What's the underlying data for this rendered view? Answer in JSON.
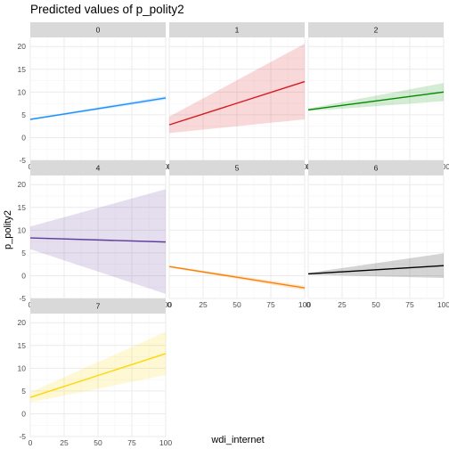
{
  "chart_data": {
    "type": "line",
    "title": "Predicted values of p_polity2",
    "xlabel": "wdi_internet",
    "ylabel": "p_polity2",
    "xlim": [
      0,
      100
    ],
    "ylim": [
      -5,
      22
    ],
    "x_ticks": [
      0,
      25,
      50,
      75,
      100
    ],
    "y_ticks": [
      -5,
      0,
      5,
      10,
      15,
      20
    ],
    "grid": true,
    "facets": [
      {
        "label": "0",
        "x": [
          0,
          100
        ],
        "y": [
          4.0,
          8.7
        ],
        "lower": [
          3.8,
          8.3
        ],
        "upper": [
          4.2,
          9.1
        ],
        "color": "#1E90FF"
      },
      {
        "label": "1",
        "x": [
          0,
          100
        ],
        "y": [
          2.8,
          12.3
        ],
        "lower": [
          1.0,
          4.0
        ],
        "upper": [
          4.6,
          20.6
        ],
        "color": "#D7191C"
      },
      {
        "label": "2",
        "x": [
          0,
          100
        ],
        "y": [
          6.1,
          10.0
        ],
        "lower": [
          5.8,
          8.0
        ],
        "upper": [
          6.4,
          12.0
        ],
        "color": "#008B00"
      },
      {
        "label": "4",
        "x": [
          0,
          100
        ],
        "y": [
          8.3,
          7.4
        ],
        "lower": [
          5.8,
          -4.0
        ],
        "upper": [
          10.8,
          19.0
        ],
        "color": "#5E3C99"
      },
      {
        "label": "5",
        "x": [
          0,
          100
        ],
        "y": [
          2.0,
          -2.7
        ],
        "lower": [
          1.8,
          -3.2
        ],
        "upper": [
          2.2,
          -2.2
        ],
        "color": "#FF7F00"
      },
      {
        "label": "6",
        "x": [
          0,
          100
        ],
        "y": [
          0.4,
          2.2
        ],
        "lower": [
          0.2,
          -0.5
        ],
        "upper": [
          0.6,
          4.9
        ],
        "color": "#000000"
      },
      {
        "label": "7",
        "x": [
          0,
          100
        ],
        "y": [
          3.6,
          13.2
        ],
        "lower": [
          2.5,
          8.5
        ],
        "upper": [
          4.7,
          18.0
        ],
        "color": "#FFD700"
      }
    ]
  }
}
